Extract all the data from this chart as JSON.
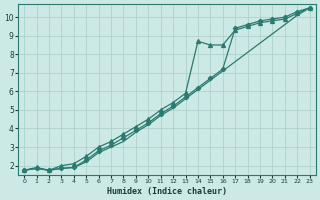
{
  "xlabel": "Humidex (Indice chaleur)",
  "background_color": "#cce9e6",
  "grid_color": "#b0d0cc",
  "line_color": "#2a7a70",
  "xlim": [
    -0.5,
    23.5
  ],
  "ylim": [
    1.5,
    10.7
  ],
  "xticks": [
    0,
    1,
    2,
    3,
    4,
    5,
    6,
    7,
    8,
    9,
    10,
    11,
    12,
    13,
    14,
    15,
    16,
    17,
    18,
    19,
    20,
    21,
    22,
    23
  ],
  "yticks": [
    2,
    3,
    4,
    5,
    6,
    7,
    8,
    9,
    10
  ],
  "line1_x": [
    0,
    1,
    2,
    3,
    4,
    5,
    6,
    7,
    8,
    9,
    10,
    11,
    12,
    13,
    14,
    15,
    16,
    17,
    18,
    19,
    20,
    21,
    22,
    23
  ],
  "line1_y": [
    1.75,
    1.9,
    1.75,
    2.0,
    2.1,
    2.5,
    3.0,
    3.3,
    3.7,
    4.1,
    4.5,
    5.0,
    5.4,
    5.9,
    8.7,
    8.5,
    8.5,
    9.3,
    9.5,
    9.7,
    9.8,
    9.9,
    10.2,
    10.5
  ],
  "line2_x": [
    0,
    1,
    2,
    3,
    4,
    5,
    6,
    7,
    8,
    9,
    10,
    11,
    12,
    13,
    14,
    15,
    16,
    17,
    18,
    19,
    20,
    21,
    22,
    23
  ],
  "line2_y": [
    1.75,
    1.85,
    1.75,
    1.85,
    1.9,
    2.3,
    2.8,
    3.1,
    3.5,
    3.9,
    4.3,
    4.8,
    5.2,
    5.7,
    6.2,
    6.7,
    7.2,
    9.4,
    9.6,
    9.8,
    9.9,
    10.0,
    10.3,
    10.5
  ],
  "line3_x": [
    0,
    1,
    2,
    3,
    4,
    5,
    6,
    7,
    8,
    9,
    10,
    11,
    12,
    13,
    14,
    15,
    16,
    17,
    18,
    19,
    20,
    21,
    22,
    23
  ],
  "line3_y": [
    1.75,
    1.85,
    1.75,
    1.85,
    1.9,
    2.2,
    2.7,
    3.0,
    3.3,
    3.8,
    4.2,
    4.7,
    5.1,
    5.6,
    6.1,
    6.6,
    7.1,
    7.6,
    8.1,
    8.6,
    9.1,
    9.6,
    10.1,
    10.5
  ]
}
